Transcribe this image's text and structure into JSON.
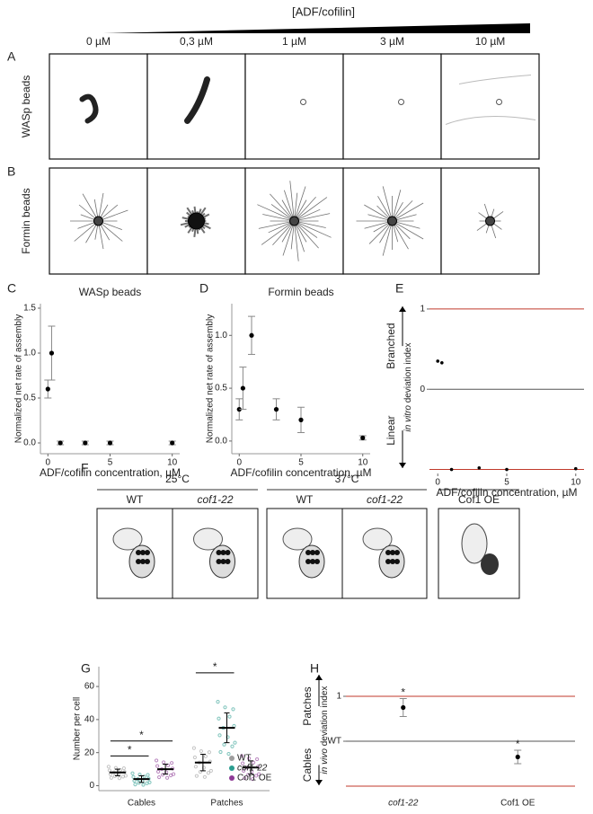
{
  "header": {
    "title": "[ADF/cofilin]",
    "concentrations": [
      "0 µM",
      "0,3 µM",
      "1 µM",
      "3 µM",
      "10 µM"
    ]
  },
  "panel_labels": [
    "A",
    "B",
    "C",
    "D",
    "E",
    "F",
    "G",
    "H"
  ],
  "row_labels": [
    "WASp beads",
    "Formin beads"
  ],
  "panel_f": {
    "groups": [
      {
        "title": "25°C",
        "cells": [
          "WT",
          "cof1-22"
        ]
      },
      {
        "title": "37°C",
        "cells": [
          "WT",
          "cof1-22"
        ]
      }
    ],
    "single": "Cof1 OE"
  },
  "chart_data": [
    {
      "type": "errorbar",
      "title": "WASp beads",
      "xlabel": "ADF/cofilin concentration, µM",
      "ylabel": "Normalized net rate of assembly",
      "x": [
        0,
        0.3,
        1,
        3,
        5,
        10
      ],
      "values": [
        0.6,
        1.0,
        0,
        0,
        0,
        0
      ],
      "errors": [
        0.1,
        0.3,
        0.02,
        0.02,
        0.02,
        0.02
      ],
      "color": "#000000",
      "xlim": [
        -0.6,
        10.6
      ],
      "ylim": [
        -0.12,
        1.55
      ],
      "xticks": [
        0,
        5,
        10
      ],
      "yticks": [
        {
          "value": 0,
          "label": "0.0"
        },
        {
          "value": 0.5,
          "label": "0.5"
        },
        {
          "value": 1,
          "label": "1.0"
        },
        {
          "value": 1.5,
          "label": "1.5"
        }
      ]
    },
    {
      "type": "errorbar",
      "title": "Formin beads",
      "xlabel": "ADF/cofilin concentration, µM",
      "ylabel": "Normalized net rate of assembly",
      "x": [
        0,
        0.3,
        1,
        3,
        5,
        10
      ],
      "values": [
        0.3,
        0.5,
        1.0,
        0.3,
        0.2,
        0.03
      ],
      "errors": [
        0.1,
        0.2,
        0.18,
        0.1,
        0.12,
        0.02
      ],
      "color": "#000000",
      "xlim": [
        -0.6,
        10.6
      ],
      "ylim": [
        -0.12,
        1.3
      ],
      "xticks": [
        0,
        5,
        10
      ],
      "yticks": [
        {
          "value": 0,
          "label": "0.0"
        },
        {
          "value": 0.5,
          "label": "0.5"
        },
        {
          "value": 1,
          "label": "1.0"
        }
      ]
    },
    {
      "type": "scatter",
      "xlabel": "ADF/cofilin concentration, µM",
      "ylabel_italic": "in vitro",
      "ylabel_rest": "deviation index",
      "annotations": [
        "Branched",
        "Linear"
      ],
      "x": [
        0,
        0.3,
        1,
        3,
        5,
        10
      ],
      "values": [
        0.35,
        0.33,
        -1,
        -0.98,
        -1,
        -0.99
      ],
      "color": "#000000",
      "reference_lines": [
        {
          "value": 1,
          "color": "#c0392b"
        },
        {
          "value": 0,
          "color": "#555555"
        },
        {
          "value": -1,
          "color": "#c0392b"
        }
      ],
      "xlim": [
        -0.6,
        10.6
      ],
      "ylim": [
        -1.05,
        1.1
      ],
      "xticks": [
        0,
        5,
        10
      ],
      "yticks": [
        0,
        1
      ]
    },
    {
      "type": "strip",
      "ylabel": "Number per cell",
      "categories": [
        "Cables",
        "Patches"
      ],
      "series": [
        {
          "name": "WT",
          "color": "#9e9e9e",
          "values": [
            8,
            14
          ],
          "errors": [
            2,
            5
          ]
        },
        {
          "name": "cof1-22",
          "color": "#2a9d8f",
          "values": [
            4,
            35
          ],
          "errors": [
            2,
            9
          ]
        },
        {
          "name": "Cof1 OE",
          "color": "#8e3a96",
          "values": [
            10,
            11
          ],
          "errors": [
            3,
            4
          ]
        }
      ],
      "annotations": [
        "*",
        "*",
        "*"
      ],
      "legend": "lower right",
      "ylim": [
        -3,
        72
      ],
      "yticks": [
        0,
        20,
        40,
        60
      ]
    },
    {
      "type": "errorbar",
      "ylabel_italic": "in vivo",
      "ylabel_rest": "deviation index",
      "annotations": [
        "Patches",
        "Cables"
      ],
      "categories": [
        "cof1-22",
        "Cof1 OE"
      ],
      "values": [
        0.75,
        -0.35
      ],
      "errors": [
        0.2,
        0.15
      ],
      "significance": [
        "*",
        "*"
      ],
      "color": "#000000",
      "reference_lines": [
        {
          "value": 1,
          "color": "#c0392b"
        },
        {
          "value": 0,
          "color": "#555555"
        },
        {
          "value": -1,
          "color": "#c0392b"
        }
      ],
      "ylim": [
        -1.1,
        1.6
      ],
      "yticks": [
        {
          "value": 0,
          "label": "WT"
        },
        1
      ]
    }
  ]
}
